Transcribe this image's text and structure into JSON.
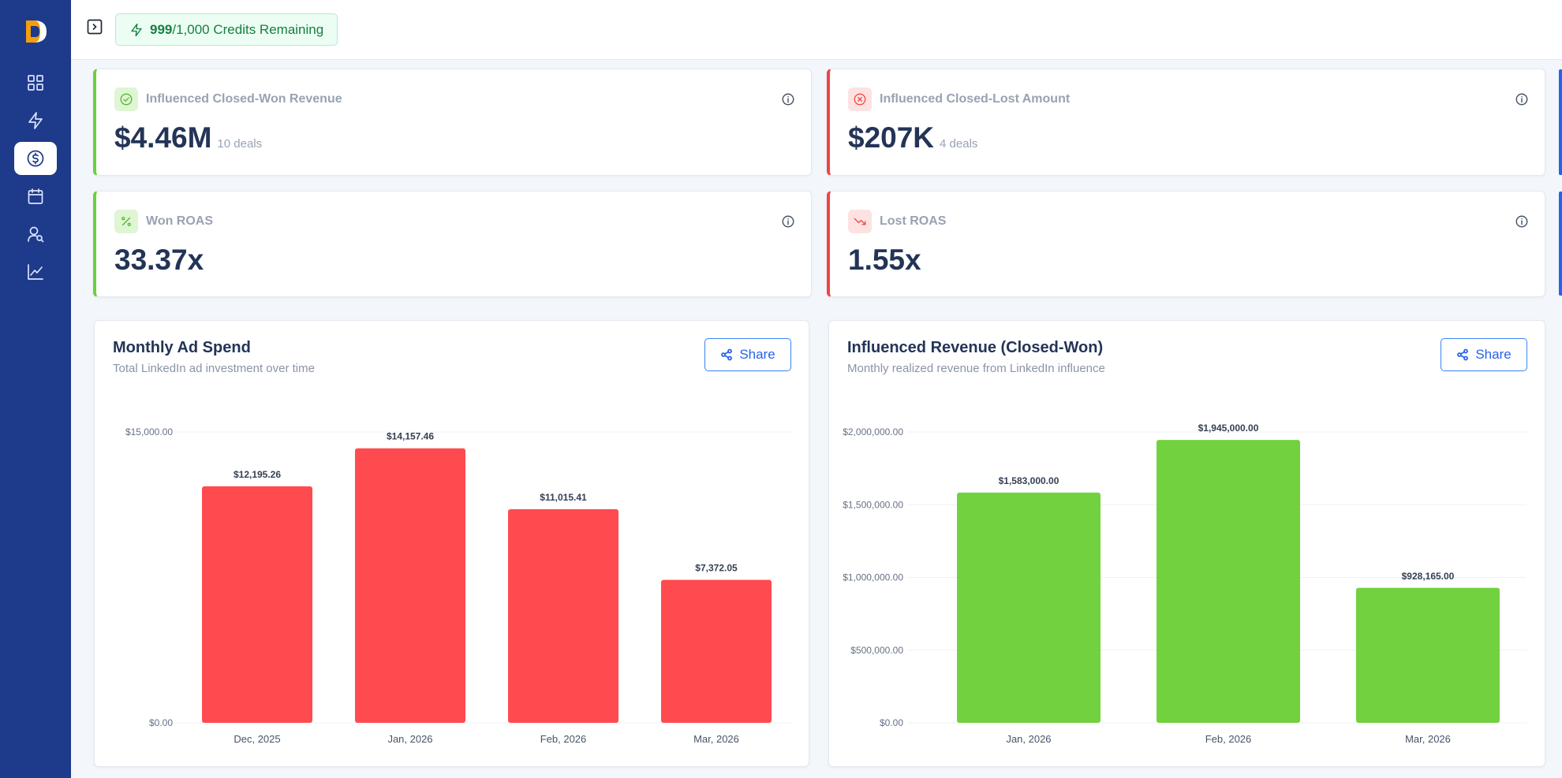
{
  "topbar": {
    "credits_used": "999",
    "credits_rest": "/1,000 Credits Remaining"
  },
  "sidebar": {
    "items": [
      {
        "name": "dashboard-icon"
      },
      {
        "name": "lightning-icon"
      },
      {
        "name": "dollar-icon",
        "active": true
      },
      {
        "name": "calendar-icon"
      },
      {
        "name": "user-search-icon"
      },
      {
        "name": "chart-line-icon"
      }
    ]
  },
  "stats": {
    "won_revenue": {
      "label": "Influenced Closed-Won Revenue",
      "value": "$4.46M",
      "sub": "10 deals"
    },
    "lost_amount": {
      "label": "Influenced Closed-Lost Amount",
      "value": "$207K",
      "sub": "4 deals"
    },
    "won_roas": {
      "label": "Won ROAS",
      "value": "33.37x"
    },
    "lost_roas": {
      "label": "Lost ROAS",
      "value": "1.55x"
    }
  },
  "charts": {
    "spend": {
      "title": "Monthly Ad Spend",
      "subtitle": "Total LinkedIn ad investment over time",
      "share_label": "Share"
    },
    "revenue": {
      "title": "Influenced Revenue (Closed-Won)",
      "subtitle": "Monthly realized revenue from LinkedIn influence",
      "share_label": "Share"
    }
  },
  "colors": {
    "spend_bar": "#ff4b4f",
    "revenue_bar": "#72d13f",
    "accent": "#2563eb"
  },
  "chart_data": [
    {
      "type": "bar",
      "title": "Monthly Ad Spend",
      "categories": [
        "Dec, 2025",
        "Jan, 2026",
        "Feb, 2026",
        "Mar, 2026"
      ],
      "values": [
        12195.26,
        14157.46,
        11015.41,
        7372.05
      ],
      "value_labels": [
        "$12,195.26",
        "$14,157.46",
        "$11,015.41",
        "$7,372.05"
      ],
      "yticks": [
        0,
        15000
      ],
      "ytick_labels": [
        "$0.00",
        "$15,000.00"
      ],
      "ylim": [
        0,
        15000
      ],
      "grid": true
    },
    {
      "type": "bar",
      "title": "Influenced Revenue (Closed-Won)",
      "categories": [
        "Jan, 2026",
        "Feb, 2026",
        "Mar, 2026"
      ],
      "values": [
        1583000,
        1945000,
        928165
      ],
      "value_labels": [
        "$1,583,000.00",
        "$1,945,000.00",
        "$928,165.00"
      ],
      "yticks": [
        0,
        500000,
        1000000,
        1500000,
        2000000
      ],
      "ytick_labels": [
        "$0.00",
        "$500,000.00",
        "$1,000,000.00",
        "$1,500,000.00",
        "$2,000,000.00"
      ],
      "ylim": [
        0,
        2000000
      ],
      "grid": true
    }
  ]
}
